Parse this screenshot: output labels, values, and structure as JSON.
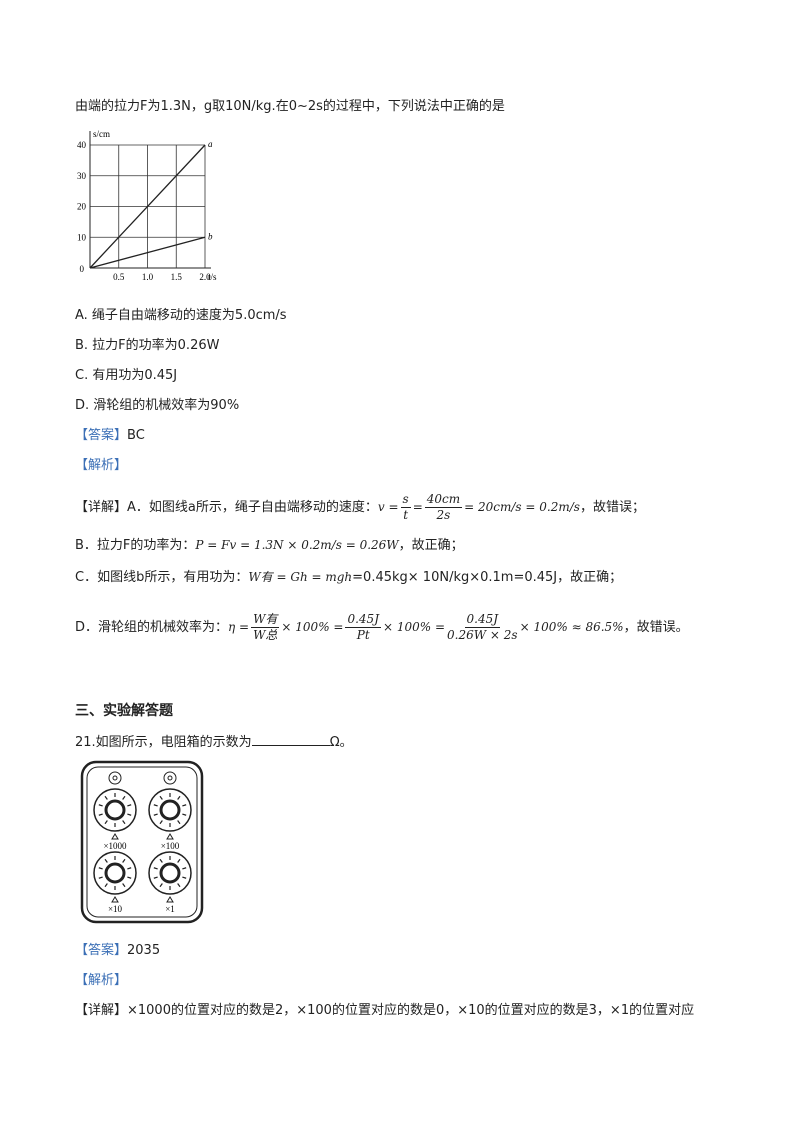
{
  "intro": "由端的拉力F为1.3N，g取10N/kg.在0~2s的过程中，下列说法中正确的是",
  "figure1": {
    "ylabel": "s/cm",
    "xlabel": "t/s",
    "origin": "0",
    "xlim": [
      0,
      2
    ],
    "ylim": [
      0,
      40
    ],
    "yticks": [
      10,
      20,
      30,
      40
    ],
    "xticks": [
      0.5,
      {
        "value": 1,
        "label": "1.0"
      },
      1.5,
      {
        "value": 2,
        "label": "2.0"
      }
    ],
    "lines": [
      {
        "name": "a",
        "x": [
          0,
          2
        ],
        "y": [
          0,
          40
        ]
      },
      {
        "name": "b",
        "x": [
          0,
          2
        ],
        "y": [
          0,
          10
        ]
      }
    ]
  },
  "options": [
    "A. 绳子自由端移动的速度为5.0cm/s",
    "B. 拉力F的功率为0.26W",
    "C. 有用功为0.45J",
    "D. 滑轮组的机械效率为90%"
  ],
  "answer1": {
    "label": "【答案】",
    "value": "BC"
  },
  "analysis1": "【解析】",
  "details": [
    {
      "text": "【详解】A．如图线a所示，绳子自由端移动的速度：",
      "formula": [
        "v =",
        {
          "num": "s",
          "den": "t"
        },
        "=",
        {
          "num": "40cm",
          "den": "2s"
        },
        "= 20cm/s = 0.2m/s"
      ],
      "end": "，故错误；"
    },
    {
      "text": "B．拉力F的功率为：",
      "formula": [
        "P = Fv = 1.3N × 0.2m/s = 0.26W"
      ],
      "end": "，故正确；"
    },
    {
      "text": "C．如图线b所示，有用功为：",
      "formula": [
        "W有 = Gh = mgh"
      ],
      "end": "=0.45kg× 10N/kg×0.1m=0.45J，故正确；"
    },
    {
      "text": "D．滑轮组的机械效率为：",
      "formula": [
        "η =",
        {
          "num": "W有",
          "den": "W总"
        },
        "× 100% =",
        {
          "num": "0.45J",
          "den": "Pt"
        },
        "× 100% =",
        {
          "num": "0.45J",
          "den": "0.26W × 2s"
        },
        "× 100% ≈ 86.5%"
      ],
      "end": "，故错误。"
    }
  ],
  "section": "三、实验解答题",
  "question21": {
    "prefix": "21.如图所示，电阻箱的示数为",
    "suffix": "Ω。"
  },
  "figure2": {
    "dials": [
      "×1000",
      "×100",
      "×10",
      "×1"
    ]
  },
  "answer2": {
    "label": "【答案】",
    "value": "2035"
  },
  "analysis2": "【解析】",
  "detail2": "【详解】×1000的位置对应的数是2，×100的位置对应的数是0，×10的位置对应的数是3，×1的位置对应"
}
